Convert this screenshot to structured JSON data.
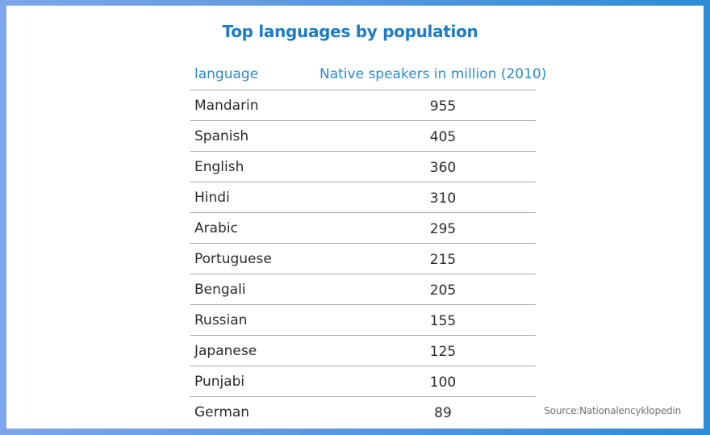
{
  "title": "Top languages by population",
  "source": "Source:Nationalencyklopedin",
  "chart_data": {
    "type": "table",
    "title": "Top languages by population",
    "columns": [
      "language",
      "Native speakers in million (2010)"
    ],
    "rows": [
      {
        "language": "Mandarin",
        "speakers": 955
      },
      {
        "language": "Spanish",
        "speakers": 405
      },
      {
        "language": "English",
        "speakers": 360
      },
      {
        "language": "Hindi",
        "speakers": 310
      },
      {
        "language": "Arabic",
        "speakers": 295
      },
      {
        "language": "Portuguese",
        "speakers": 215
      },
      {
        "language": "Bengali",
        "speakers": 205
      },
      {
        "language": "Russian",
        "speakers": 155
      },
      {
        "language": "Japanese",
        "speakers": 125
      },
      {
        "language": "Punjabi",
        "speakers": 100
      },
      {
        "language": "German",
        "speakers": 89
      }
    ]
  }
}
